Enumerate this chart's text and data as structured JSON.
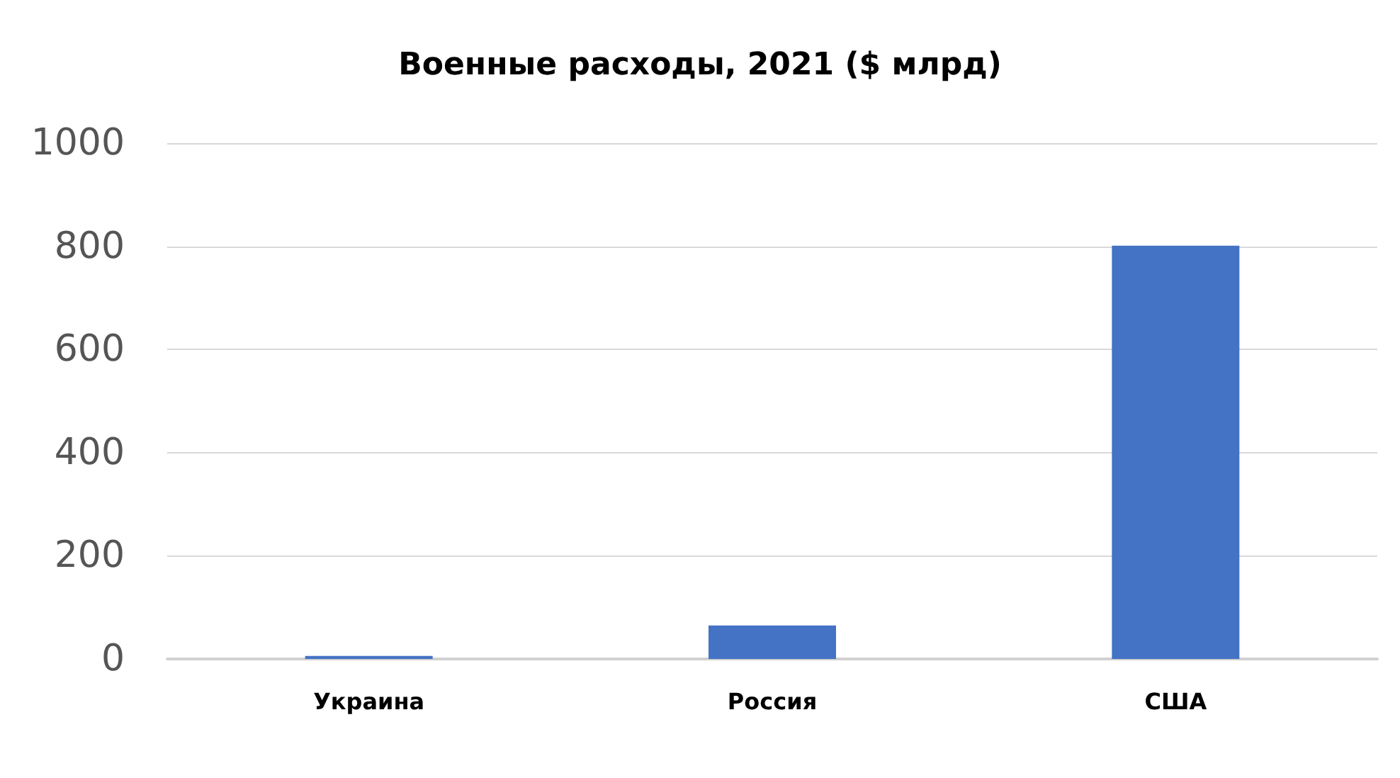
{
  "chart_data": {
    "type": "bar",
    "title": "Военные расходы, 2021 ($ млрд)",
    "categories": [
      "Украина",
      "Россия",
      "США"
    ],
    "values": [
      6,
      65,
      801
    ],
    "color": "#4472c4",
    "ylim": [
      0,
      1000
    ],
    "yticks": [
      0,
      200,
      400,
      600,
      800,
      1000
    ],
    "grid": "y"
  }
}
